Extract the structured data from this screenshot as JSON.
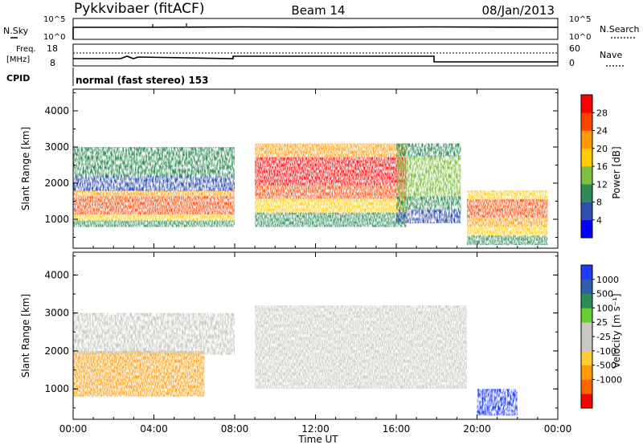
{
  "header": {
    "title": "Pykkvibaer (fitACF)",
    "beam": "Beam 14",
    "date": "08/Jan/2013"
  },
  "noise_panel": {
    "left_label": "N.Sky",
    "right_label": "N.Search",
    "left_ticks": [
      "10^5",
      "10^0"
    ],
    "right_ticks": [
      "10^5",
      "10^0"
    ]
  },
  "freq_panel": {
    "left_label_1": "Freq.",
    "left_label_2": "[MHz]",
    "right_label": "Nave",
    "left_ticks": [
      "18",
      "8"
    ],
    "right_ticks": [
      "60",
      "0"
    ]
  },
  "cpid_panel": {
    "label": "CPID",
    "text": "normal (fast stereo) 153"
  },
  "colors": {
    "power_scale": [
      "#0000ff",
      "#2f4faf",
      "#2e8b57",
      "#7fbf3f",
      "#ffcc00",
      "#ff9900",
      "#ff4500",
      "#ff0000"
    ],
    "velocity_scale": [
      "#ff0000",
      "#ff6600",
      "#ff9900",
      "#ffcc33",
      "#c8c8c0",
      "#c8c8c0",
      "#66cc33",
      "#2e8b57",
      "#2e5eaa",
      "#1e3cff"
    ],
    "ground_scatter": "#c0c0c0"
  },
  "chart_data": [
    {
      "type": "heatmap",
      "name": "power",
      "ylabel": "Slant Range [km]",
      "y_ticks": [
        "1000",
        "2000",
        "3000",
        "4000"
      ],
      "ylim": [
        200,
        4600
      ],
      "colorbar_label": "Power [dB]",
      "colorbar_ticks": [
        "4",
        "8",
        "12",
        "16",
        "20",
        "24",
        "28"
      ],
      "colorbar_range": [
        0,
        32
      ],
      "regions": [
        {
          "t_start": 0.0,
          "t_end": 8.0,
          "r_start": 800,
          "r_end": 1800,
          "peak_db": 28
        },
        {
          "t_start": 0.0,
          "t_end": 8.0,
          "r_start": 1800,
          "r_end": 3000,
          "peak_db": 12
        },
        {
          "t_start": 9.0,
          "t_end": 16.5,
          "r_start": 800,
          "r_end": 3100,
          "peak_db": 30
        },
        {
          "t_start": 16.0,
          "t_end": 19.2,
          "r_start": 900,
          "r_end": 3100,
          "peak_db": 14
        },
        {
          "t_start": 19.5,
          "t_end": 23.5,
          "r_start": 300,
          "r_end": 1800,
          "peak_db": 26
        }
      ]
    },
    {
      "type": "heatmap",
      "name": "velocity",
      "xlabel": "Time UT",
      "ylabel": "Slant Range [km]",
      "x_ticks": [
        "00:00",
        "04:00",
        "08:00",
        "12:00",
        "16:00",
        "20:00",
        "00:00"
      ],
      "xlim": [
        0,
        24
      ],
      "y_ticks": [
        "1000",
        "2000",
        "3000",
        "4000"
      ],
      "ylim": [
        200,
        4600
      ],
      "colorbar_label": "Velocity [m s⁻¹]",
      "colorbar_ticks": [
        "1000",
        "500",
        "100",
        "25",
        "-25",
        "-100",
        "-500",
        "-1000"
      ],
      "regions": [
        {
          "t_start": 0.0,
          "t_end": 6.5,
          "r_start": 800,
          "r_end": 2000,
          "velocity": -150
        },
        {
          "t_start": 0.0,
          "t_end": 8.0,
          "r_start": 1900,
          "r_end": 3000,
          "velocity": 0
        },
        {
          "t_start": 9.0,
          "t_end": 19.5,
          "r_start": 1000,
          "r_end": 3200,
          "velocity": 0
        },
        {
          "t_start": 20.0,
          "t_end": 22.0,
          "r_start": 300,
          "r_end": 1000,
          "velocity": 900
        }
      ]
    }
  ]
}
